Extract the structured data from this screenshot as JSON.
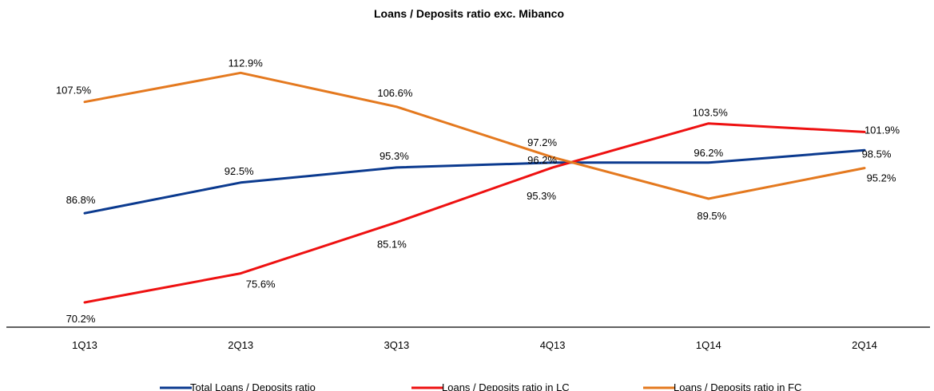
{
  "chart_data": {
    "type": "line",
    "title": "Loans / Deposits ratio exc. Mibanco",
    "xlabel": "",
    "ylabel": "",
    "categories": [
      "1Q13",
      "2Q13",
      "3Q13",
      "4Q13",
      "1Q14",
      "2Q14"
    ],
    "ylim": [
      65,
      115
    ],
    "grid": false,
    "legend_position": "bottom",
    "series": [
      {
        "name": "Total Loans / Deposits ratio",
        "color": "#0b3a8f",
        "values": [
          86.8,
          92.5,
          95.3,
          96.2,
          96.2,
          98.5
        ],
        "labels": [
          "86.8%",
          "92.5%",
          "95.3%",
          "96.2%",
          "96.2%",
          "98.5%"
        ]
      },
      {
        "name": "Loans / Deposits ratio in LC",
        "color": "#ee1111",
        "values": [
          70.2,
          75.6,
          85.1,
          95.3,
          103.5,
          101.9
        ],
        "labels": [
          "70.2%",
          "75.6%",
          "85.1%",
          "95.3%",
          "103.5%",
          "101.9%"
        ]
      },
      {
        "name": "Loans / Deposits ratio in FC",
        "color": "#e4791f",
        "values": [
          107.5,
          112.9,
          106.6,
          97.2,
          89.5,
          95.2
        ],
        "labels": [
          "107.5%",
          "112.9%",
          "106.6%",
          "97.2%",
          "89.5%",
          "95.2%"
        ]
      }
    ]
  }
}
